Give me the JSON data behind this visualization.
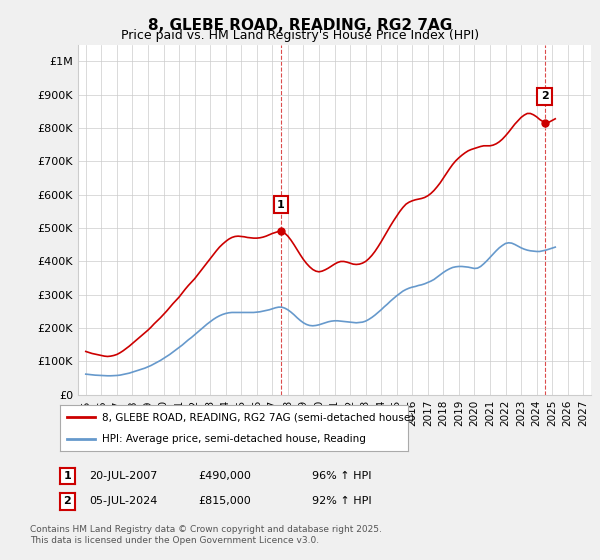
{
  "title": "8, GLEBE ROAD, READING, RG2 7AG",
  "subtitle": "Price paid vs. HM Land Registry's House Price Index (HPI)",
  "legend_line1": "8, GLEBE ROAD, READING, RG2 7AG (semi-detached house)",
  "legend_line2": "HPI: Average price, semi-detached house, Reading",
  "footnote": "Contains HM Land Registry data © Crown copyright and database right 2025.\nThis data is licensed under the Open Government Licence v3.0.",
  "annotation1_label": "1",
  "annotation1_date": "20-JUL-2007",
  "annotation1_price": "£490,000",
  "annotation1_hpi": "96% ↑ HPI",
  "annotation2_label": "2",
  "annotation2_date": "05-JUL-2024",
  "annotation2_price": "£815,000",
  "annotation2_hpi": "92% ↑ HPI",
  "red_color": "#cc0000",
  "blue_color": "#6699cc",
  "grid_color": "#cccccc",
  "bg_color": "#f0f0f0",
  "plot_bg": "#ffffff",
  "ylim": [
    0,
    1050000
  ],
  "yticks": [
    0,
    100000,
    200000,
    300000,
    400000,
    500000,
    600000,
    700000,
    800000,
    900000,
    1000000
  ],
  "ytick_labels": [
    "£0",
    "£100K",
    "£200K",
    "£300K",
    "£400K",
    "£500K",
    "£600K",
    "£700K",
    "£800K",
    "£900K",
    "£1M"
  ],
  "xlim_start": 1994.5,
  "xlim_end": 2027.5,
  "xtick_years": [
    1995,
    1996,
    1997,
    1998,
    1999,
    2000,
    2001,
    2002,
    2003,
    2004,
    2005,
    2006,
    2007,
    2008,
    2009,
    2010,
    2011,
    2012,
    2013,
    2014,
    2015,
    2016,
    2017,
    2018,
    2019,
    2020,
    2021,
    2022,
    2023,
    2024,
    2025,
    2026,
    2027
  ],
  "sale1_x": 2007.55,
  "sale1_y": 490000,
  "sale2_x": 2024.52,
  "sale2_y": 815000,
  "red_x": [
    1995.0,
    1995.2,
    1995.4,
    1995.6,
    1995.8,
    1996.0,
    1996.2,
    1996.4,
    1996.6,
    1996.8,
    1997.0,
    1997.2,
    1997.4,
    1997.6,
    1997.8,
    1998.0,
    1998.2,
    1998.4,
    1998.6,
    1998.8,
    1999.0,
    1999.2,
    1999.4,
    1999.6,
    1999.8,
    2000.0,
    2000.2,
    2000.4,
    2000.6,
    2000.8,
    2001.0,
    2001.2,
    2001.4,
    2001.6,
    2001.8,
    2002.0,
    2002.2,
    2002.4,
    2002.6,
    2002.8,
    2003.0,
    2003.2,
    2003.4,
    2003.6,
    2003.8,
    2004.0,
    2004.2,
    2004.4,
    2004.6,
    2004.8,
    2005.0,
    2005.2,
    2005.4,
    2005.6,
    2005.8,
    2006.0,
    2006.2,
    2006.4,
    2006.6,
    2006.8,
    2007.0,
    2007.2,
    2007.4,
    2007.55,
    2007.8,
    2008.0,
    2008.2,
    2008.4,
    2008.6,
    2008.8,
    2009.0,
    2009.2,
    2009.4,
    2009.6,
    2009.8,
    2010.0,
    2010.2,
    2010.4,
    2010.6,
    2010.8,
    2011.0,
    2011.2,
    2011.4,
    2011.6,
    2011.8,
    2012.0,
    2012.2,
    2012.4,
    2012.6,
    2012.8,
    2013.0,
    2013.2,
    2013.4,
    2013.6,
    2013.8,
    2014.0,
    2014.2,
    2014.4,
    2014.6,
    2014.8,
    2015.0,
    2015.2,
    2015.4,
    2015.6,
    2015.8,
    2016.0,
    2016.2,
    2016.4,
    2016.6,
    2016.8,
    2017.0,
    2017.2,
    2017.4,
    2017.6,
    2017.8,
    2018.0,
    2018.2,
    2018.4,
    2018.6,
    2018.8,
    2019.0,
    2019.2,
    2019.4,
    2019.6,
    2019.8,
    2020.0,
    2020.2,
    2020.4,
    2020.6,
    2020.8,
    2021.0,
    2021.2,
    2021.4,
    2021.6,
    2021.8,
    2022.0,
    2022.2,
    2022.4,
    2022.6,
    2022.8,
    2023.0,
    2023.2,
    2023.4,
    2023.6,
    2023.8,
    2024.0,
    2024.2,
    2024.4,
    2024.52,
    2024.8,
    2025.0,
    2025.2
  ],
  "red_y": [
    130000,
    127000,
    124000,
    122000,
    120000,
    118000,
    116000,
    115000,
    116000,
    118000,
    121000,
    126000,
    132000,
    139000,
    146000,
    154000,
    162000,
    170000,
    178000,
    186000,
    194000,
    203000,
    213000,
    222000,
    231000,
    241000,
    251000,
    262000,
    273000,
    283000,
    293000,
    305000,
    317000,
    328000,
    338000,
    348000,
    360000,
    372000,
    384000,
    396000,
    408000,
    420000,
    432000,
    443000,
    452000,
    460000,
    467000,
    472000,
    475000,
    476000,
    475000,
    474000,
    472000,
    471000,
    470000,
    470000,
    471000,
    473000,
    476000,
    480000,
    484000,
    487000,
    490000,
    490000,
    485000,
    476000,
    464000,
    450000,
    435000,
    420000,
    406000,
    394000,
    384000,
    376000,
    371000,
    369000,
    371000,
    375000,
    380000,
    386000,
    392000,
    397000,
    400000,
    400000,
    398000,
    395000,
    392000,
    391000,
    392000,
    395000,
    400000,
    408000,
    418000,
    430000,
    444000,
    459000,
    475000,
    491000,
    507000,
    522000,
    536000,
    550000,
    562000,
    572000,
    578000,
    582000,
    585000,
    587000,
    589000,
    592000,
    597000,
    604000,
    613000,
    624000,
    636000,
    650000,
    664000,
    678000,
    691000,
    702000,
    711000,
    719000,
    726000,
    732000,
    736000,
    739000,
    742000,
    745000,
    747000,
    747000,
    747000,
    749000,
    753000,
    759000,
    767000,
    777000,
    788000,
    800000,
    812000,
    822000,
    832000,
    839000,
    844000,
    844000,
    840000,
    834000,
    826000,
    820000,
    815000,
    818000,
    823000,
    828000
  ],
  "blue_x": [
    1995.0,
    1995.2,
    1995.4,
    1995.6,
    1995.8,
    1996.0,
    1996.2,
    1996.4,
    1996.6,
    1996.8,
    1997.0,
    1997.2,
    1997.4,
    1997.6,
    1997.8,
    1998.0,
    1998.2,
    1998.4,
    1998.6,
    1998.8,
    1999.0,
    1999.2,
    1999.4,
    1999.6,
    1999.8,
    2000.0,
    2000.2,
    2000.4,
    2000.6,
    2000.8,
    2001.0,
    2001.2,
    2001.4,
    2001.6,
    2001.8,
    2002.0,
    2002.2,
    2002.4,
    2002.6,
    2002.8,
    2003.0,
    2003.2,
    2003.4,
    2003.6,
    2003.8,
    2004.0,
    2004.2,
    2004.4,
    2004.6,
    2004.8,
    2005.0,
    2005.2,
    2005.4,
    2005.6,
    2005.8,
    2006.0,
    2006.2,
    2006.4,
    2006.6,
    2006.8,
    2007.0,
    2007.2,
    2007.4,
    2007.6,
    2007.8,
    2008.0,
    2008.2,
    2008.4,
    2008.6,
    2008.8,
    2009.0,
    2009.2,
    2009.4,
    2009.6,
    2009.8,
    2010.0,
    2010.2,
    2010.4,
    2010.6,
    2010.8,
    2011.0,
    2011.2,
    2011.4,
    2011.6,
    2011.8,
    2012.0,
    2012.2,
    2012.4,
    2012.6,
    2012.8,
    2013.0,
    2013.2,
    2013.4,
    2013.6,
    2013.8,
    2014.0,
    2014.2,
    2014.4,
    2014.6,
    2014.8,
    2015.0,
    2015.2,
    2015.4,
    2015.6,
    2015.8,
    2016.0,
    2016.2,
    2016.4,
    2016.6,
    2016.8,
    2017.0,
    2017.2,
    2017.4,
    2017.6,
    2017.8,
    2018.0,
    2018.2,
    2018.4,
    2018.6,
    2018.8,
    2019.0,
    2019.2,
    2019.4,
    2019.6,
    2019.8,
    2020.0,
    2020.2,
    2020.4,
    2020.6,
    2020.8,
    2021.0,
    2021.2,
    2021.4,
    2021.6,
    2021.8,
    2022.0,
    2022.2,
    2022.4,
    2022.6,
    2022.8,
    2023.0,
    2023.2,
    2023.4,
    2023.6,
    2023.8,
    2024.0,
    2024.2,
    2024.4,
    2024.6,
    2024.8,
    2025.0,
    2025.2
  ],
  "blue_y": [
    62000,
    61000,
    60000,
    59000,
    58500,
    58000,
    57500,
    57000,
    57000,
    57500,
    58000,
    59000,
    61000,
    63000,
    65000,
    68000,
    71000,
    74000,
    77000,
    80000,
    84000,
    88000,
    93000,
    98000,
    103000,
    109000,
    115000,
    121000,
    128000,
    135000,
    142000,
    149000,
    157000,
    165000,
    172000,
    180000,
    188000,
    196000,
    204000,
    212000,
    219000,
    226000,
    232000,
    237000,
    241000,
    244000,
    246000,
    247000,
    247000,
    247000,
    247000,
    247000,
    247000,
    247000,
    247000,
    248000,
    249000,
    251000,
    253000,
    255000,
    258000,
    261000,
    263000,
    263000,
    260000,
    255000,
    248000,
    240000,
    231000,
    223000,
    216000,
    211000,
    208000,
    207000,
    208000,
    210000,
    213000,
    216000,
    219000,
    221000,
    222000,
    222000,
    221000,
    220000,
    219000,
    218000,
    217000,
    216000,
    217000,
    218000,
    221000,
    226000,
    232000,
    239000,
    247000,
    255000,
    264000,
    272000,
    281000,
    289000,
    297000,
    304000,
    311000,
    316000,
    320000,
    323000,
    325000,
    328000,
    330000,
    333000,
    337000,
    341000,
    346000,
    353000,
    360000,
    367000,
    373000,
    378000,
    382000,
    384000,
    385000,
    385000,
    384000,
    383000,
    381000,
    379000,
    380000,
    385000,
    393000,
    402000,
    412000,
    422000,
    432000,
    441000,
    448000,
    454000,
    456000,
    455000,
    451000,
    446000,
    441000,
    437000,
    434000,
    432000,
    431000,
    430000,
    430000,
    432000,
    434000,
    437000,
    440000,
    443000
  ]
}
